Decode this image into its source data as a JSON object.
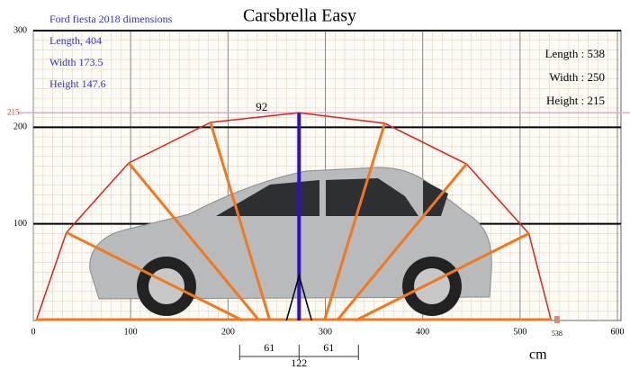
{
  "title": "Carsbrella Easy",
  "reference": {
    "heading": "Ford fiesta 2018 dimensions",
    "lines": [
      "Length, 404",
      "Width 173.5",
      "Height 147.6"
    ]
  },
  "product": {
    "lines": [
      "Length : 538",
      "Width : 250",
      "Height : 215"
    ]
  },
  "axes": {
    "xlim": [
      0,
      600
    ],
    "xticks": [
      0,
      100,
      200,
      300,
      400,
      500,
      600
    ],
    "ylim": [
      0,
      300
    ],
    "yticks": [
      100,
      200,
      300
    ],
    "unit": "cm"
  },
  "height_line": 215,
  "length_marker": 538,
  "pole_label": "92",
  "outline": {
    "x": [
      3,
      34,
      98,
      182,
      273,
      361,
      445,
      509,
      532
    ],
    "y": [
      0,
      91,
      163,
      205,
      215,
      204,
      162,
      90,
      0
    ]
  },
  "rib_base_x": [
    215,
    232,
    243,
    273,
    299,
    312,
    331
  ],
  "pole_x": 273,
  "dimensions": {
    "left": 61,
    "right": 61,
    "total": 122
  }
}
